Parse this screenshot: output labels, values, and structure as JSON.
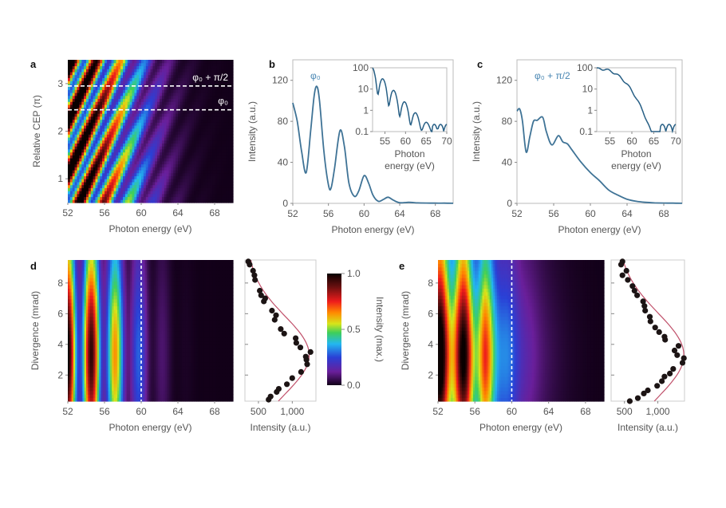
{
  "figure": {
    "panels": [
      "a",
      "b",
      "c",
      "d",
      "e"
    ]
  },
  "chart_data": [
    {
      "panel": "a",
      "type": "heatmap",
      "xlabel": "Photon energy (eV)",
      "ylabel": "Relative CEP (π)",
      "xlim": [
        52,
        70
      ],
      "ylim": [
        0.5,
        3.5
      ],
      "xticks": [
        "52",
        "56",
        "60",
        "64",
        "68"
      ],
      "yticks": [
        "1",
        "2",
        "3"
      ],
      "annotations": [
        {
          "text": "φ₀ + π/2",
          "y": 2.95
        },
        {
          "text": "φ₀",
          "y": 2.45
        }
      ],
      "colormap": "jet-black (0 black/purple → 1 black via red)"
    },
    {
      "panel": "b",
      "type": "line",
      "label": "φ₀",
      "xlabel": "Photon energy (eV)",
      "ylabel": "Intensity (a.u.)",
      "xlim": [
        52,
        70
      ],
      "ylim": [
        0,
        140
      ],
      "xticks": [
        "52",
        "56",
        "60",
        "64",
        "68"
      ],
      "yticks": [
        "0",
        "40",
        "80",
        "120"
      ],
      "x": [
        52,
        52.5,
        53,
        53.5,
        54,
        54.4,
        54.7,
        55,
        55.5,
        56,
        56.3,
        56.7,
        57.3,
        57.8,
        58.3,
        58.9,
        59.4,
        60,
        60.5,
        61,
        61.6,
        62.2,
        62.7,
        63.3,
        64,
        65,
        66,
        67,
        68,
        69,
        70
      ],
      "y": [
        98,
        80,
        50,
        30,
        70,
        105,
        114,
        100,
        50,
        18,
        15,
        35,
        71,
        55,
        20,
        7,
        12,
        27,
        20,
        8,
        2,
        4,
        6,
        3,
        0.6,
        1,
        0.5,
        0.3,
        0.2,
        0.2,
        0.1
      ],
      "inset": {
        "type": "line",
        "xlabel": "Photon energy (eV)",
        "xlabel_lines": [
          "Photon",
          "energy (eV)"
        ],
        "yscale": "log",
        "xlim": [
          52,
          70
        ],
        "ylim": [
          0.1,
          100
        ],
        "xticks": [
          "55",
          "60",
          "65",
          "70"
        ],
        "yticks": [
          "0.1",
          "1",
          "10",
          "100"
        ]
      }
    },
    {
      "panel": "c",
      "type": "line",
      "label": "φ₀ + π/2",
      "xlabel": "Photon energy (eV)",
      "ylabel": "Intensity (a.u.)",
      "xlim": [
        52,
        70
      ],
      "ylim": [
        0,
        140
      ],
      "xticks": [
        "52",
        "56",
        "60",
        "64",
        "68"
      ],
      "yticks": [
        "0",
        "40",
        "80",
        "120"
      ],
      "x": [
        52,
        52.3,
        52.6,
        53,
        53.4,
        53.8,
        54.2,
        54.8,
        55.2,
        55.8,
        56.5,
        57,
        57.5,
        58,
        59,
        60,
        61,
        62,
        63,
        64,
        65,
        66,
        67,
        68,
        69,
        70
      ],
      "y": [
        90,
        92,
        80,
        50,
        65,
        80,
        81,
        84,
        70,
        57,
        66,
        60,
        58,
        52,
        40,
        30,
        22,
        13,
        8,
        4,
        2,
        1,
        0.5,
        0.3,
        0.2,
        0.1
      ],
      "inset": {
        "type": "line",
        "xlabel": "Photon energy (eV)",
        "xlabel_lines": [
          "Photon",
          "energy (eV)"
        ],
        "yscale": "log",
        "xlim": [
          52,
          70
        ],
        "ylim": [
          0.1,
          100
        ],
        "xticks": [
          "55",
          "60",
          "65",
          "70"
        ],
        "yticks": [
          "0.1",
          "1",
          "10",
          "100"
        ]
      }
    },
    {
      "panel": "d",
      "type": "heatmap",
      "xlabel": "Photon energy (eV)",
      "ylabel": "Divergence (mrad)",
      "xlim": [
        52,
        70
      ],
      "ylim": [
        0.3,
        9.5
      ],
      "xticks": [
        "52",
        "56",
        "60",
        "64",
        "68"
      ],
      "yticks": [
        "2",
        "4",
        "6",
        "8"
      ],
      "dashed_line_x": 60,
      "peaks_eV": [
        52,
        54.6,
        57.3,
        60,
        62.6
      ],
      "side_profile": {
        "type": "scatter",
        "xlabel": "Intensity (a.u.)",
        "xticks": [
          "500",
          "1,000"
        ],
        "xlim": [
          300,
          1350
        ],
        "points": [
          [
            350,
            9.4
          ],
          [
            370,
            9.2
          ],
          [
            420,
            8.8
          ],
          [
            440,
            8.5
          ],
          [
            450,
            8.2
          ],
          [
            520,
            7.5
          ],
          [
            540,
            7.2
          ],
          [
            600,
            7.0
          ],
          [
            580,
            6.8
          ],
          [
            700,
            6.2
          ],
          [
            760,
            5.9
          ],
          [
            740,
            5.6
          ],
          [
            830,
            5.0
          ],
          [
            880,
            4.7
          ],
          [
            1050,
            4.4
          ],
          [
            1060,
            4.1
          ],
          [
            1120,
            3.8
          ],
          [
            1270,
            3.5
          ],
          [
            1200,
            3.2
          ],
          [
            1210,
            3.0
          ],
          [
            1220,
            2.7
          ],
          [
            1130,
            2.2
          ],
          [
            1000,
            1.8
          ],
          [
            920,
            1.4
          ],
          [
            800,
            1.1
          ],
          [
            770,
            0.9
          ],
          [
            680,
            0.6
          ],
          [
            650,
            0.4
          ]
        ],
        "fit_line": true
      }
    },
    {
      "panel": "colorbar",
      "type": "heatmap",
      "label": "Intensity (max.)",
      "ticks": [
        "0.0",
        "0.5",
        "1.0"
      ],
      "range": [
        0,
        1
      ]
    },
    {
      "panel": "e",
      "type": "heatmap",
      "xlabel": "Photon energy (eV)",
      "ylabel": "Divergence (mrad)",
      "xlim": [
        52,
        70
      ],
      "ylim": [
        0.3,
        9.5
      ],
      "xticks": [
        "52",
        "56",
        "60",
        "64",
        "68"
      ],
      "yticks": [
        "2",
        "4",
        "6",
        "8"
      ],
      "dashed_line_x": 60,
      "peaks_eV": [
        52,
        54.8,
        57
      ],
      "side_profile": {
        "type": "scatter",
        "xlabel": "Intensity (a.u.)",
        "xticks": [
          "500",
          "1,000"
        ],
        "xlim": [
          300,
          1400
        ],
        "points": [
          [
            470,
            9.4
          ],
          [
            450,
            9.2
          ],
          [
            530,
            8.8
          ],
          [
            470,
            8.5
          ],
          [
            550,
            8.2
          ],
          [
            620,
            7.8
          ],
          [
            650,
            7.5
          ],
          [
            690,
            7.2
          ],
          [
            780,
            6.8
          ],
          [
            800,
            6.5
          ],
          [
            810,
            6.2
          ],
          [
            880,
            5.8
          ],
          [
            890,
            5.5
          ],
          [
            960,
            5.1
          ],
          [
            1020,
            4.8
          ],
          [
            1100,
            4.5
          ],
          [
            1110,
            4.3
          ],
          [
            1310,
            3.9
          ],
          [
            1250,
            3.6
          ],
          [
            1290,
            3.3
          ],
          [
            1390,
            3.1
          ],
          [
            1370,
            2.8
          ],
          [
            1230,
            2.4
          ],
          [
            1180,
            2.1
          ],
          [
            1100,
            1.9
          ],
          [
            1060,
            1.6
          ],
          [
            990,
            1.3
          ],
          [
            850,
            1.0
          ],
          [
            790,
            0.8
          ],
          [
            700,
            0.5
          ],
          [
            580,
            0.3
          ]
        ],
        "fit_line": true
      }
    }
  ]
}
